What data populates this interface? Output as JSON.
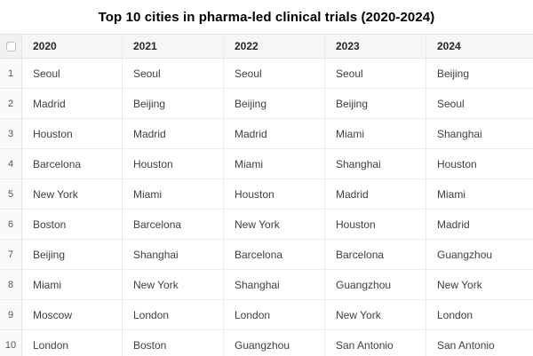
{
  "title": "Top 10 cities in pharma-led clinical trials (2020-2024)",
  "table": {
    "select_all_checkbox": "unchecked",
    "columns": [
      "2020",
      "2021",
      "2022",
      "2023",
      "2024"
    ],
    "rows": [
      {
        "rank": "1",
        "cells": [
          "Seoul",
          "Seoul",
          "Seoul",
          "Seoul",
          "Beijing"
        ]
      },
      {
        "rank": "2",
        "cells": [
          "Madrid",
          "Beijing",
          "Beijing",
          "Beijing",
          "Seoul"
        ]
      },
      {
        "rank": "3",
        "cells": [
          "Houston",
          "Madrid",
          "Madrid",
          "Miami",
          "Shanghai"
        ]
      },
      {
        "rank": "4",
        "cells": [
          "Barcelona",
          "Houston",
          "Miami",
          "Shanghai",
          "Houston"
        ]
      },
      {
        "rank": "5",
        "cells": [
          "New York",
          "Miami",
          "Houston",
          "Madrid",
          "Miami"
        ]
      },
      {
        "rank": "6",
        "cells": [
          "Boston",
          "Barcelona",
          "New York",
          "Houston",
          "Madrid"
        ]
      },
      {
        "rank": "7",
        "cells": [
          "Beijing",
          "Shanghai",
          "Barcelona",
          "Barcelona",
          "Guangzhou"
        ]
      },
      {
        "rank": "8",
        "cells": [
          "Miami",
          "New York",
          "Shanghai",
          "Guangzhou",
          "New York"
        ]
      },
      {
        "rank": "9",
        "cells": [
          "Moscow",
          "London",
          "London",
          "New York",
          "London"
        ]
      },
      {
        "rank": "10",
        "cells": [
          "London",
          "Boston",
          "Guangzhou",
          "San Antonio",
          "San Antonio"
        ]
      }
    ]
  },
  "colors": {
    "header_bg": "#f6f6f7",
    "rank_col_bg": "#fafafa",
    "border": "#e4e4e7",
    "row_border": "#ececec",
    "title_text": "#000000",
    "cell_text": "#3f3f46"
  }
}
